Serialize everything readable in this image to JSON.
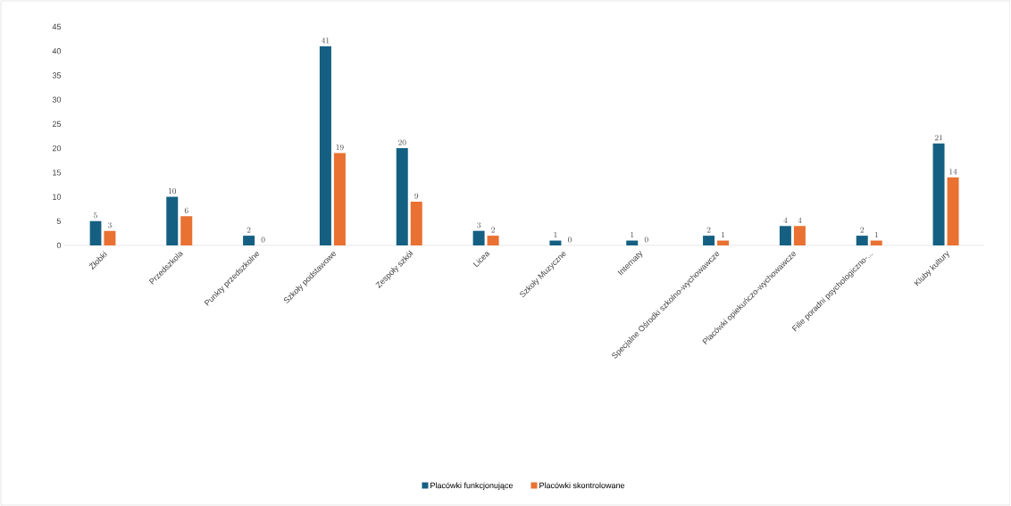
{
  "chart_data": {
    "type": "bar",
    "categories": [
      "Żłobki",
      "Przedszkola",
      "Punkty przedszkolne",
      "Szkoły podstawowe",
      "Zespoły szkół",
      "Licea",
      "Szkoły Muzyczne",
      "Internaty",
      "Specjalne Ośrodki szkolno-wychowawcze",
      "Placówki opiekuńczo-wychowawcze",
      "Filie poradni psychologiczno-...",
      "Kluby kultury"
    ],
    "series": [
      {
        "name": "Placówki funkcjonujące",
        "color": "#156082",
        "values": [
          5,
          10,
          2,
          41,
          20,
          3,
          1,
          1,
          2,
          4,
          2,
          21
        ]
      },
      {
        "name": "Placówki skontrolowane",
        "color": "#e97132",
        "values": [
          3,
          6,
          0,
          19,
          9,
          2,
          0,
          0,
          1,
          4,
          1,
          14
        ]
      }
    ],
    "ylim": [
      0,
      45
    ],
    "yticks": [
      0,
      5,
      10,
      15,
      20,
      25,
      30,
      35,
      40,
      45
    ],
    "data_labels": true,
    "legend": "bottom",
    "grid": false
  }
}
